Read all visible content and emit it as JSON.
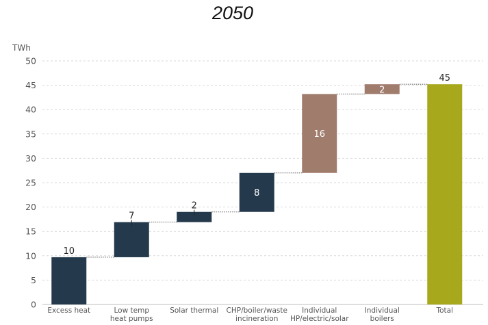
{
  "chart_data": {
    "type": "bar",
    "subtype": "waterfall",
    "title": "2050",
    "ylabel": "TWh",
    "xlabel": "",
    "ylim": [
      0,
      50
    ],
    "yticks": [
      0,
      5,
      10,
      15,
      20,
      25,
      30,
      35,
      40,
      45,
      50
    ],
    "grid": true,
    "categories": [
      [
        "Excess heat"
      ],
      [
        "Low temp",
        "heat pumps"
      ],
      [
        "Solar thermal"
      ],
      [
        "CHP/boiler/waste",
        "incineration"
      ],
      [
        "Individual",
        "HP/electric/solar"
      ],
      [
        "Individual",
        "boilers"
      ],
      [
        "Total"
      ]
    ],
    "values": [
      10,
      7,
      2,
      8,
      16,
      2,
      45
    ],
    "bars": [
      {
        "start": 0,
        "end": 9.7,
        "label": "10",
        "color": "#243a4c",
        "label_position": "above"
      },
      {
        "start": 9.7,
        "end": 16.9,
        "label": "7",
        "color": "#243a4c",
        "label_position": "above"
      },
      {
        "start": 16.9,
        "end": 19.0,
        "label": "2",
        "color": "#243a4c",
        "label_position": "above"
      },
      {
        "start": 19.0,
        "end": 27.0,
        "label": "8",
        "color": "#243a4c",
        "label_position": "inside"
      },
      {
        "start": 27.0,
        "end": 43.2,
        "label": "16",
        "color": "#a07c6c",
        "label_position": "inside"
      },
      {
        "start": 43.2,
        "end": 45.2,
        "label": "2",
        "color": "#a07c6c",
        "label_position": "inside"
      },
      {
        "start": 0,
        "end": 45.2,
        "label": "45",
        "color": "#a7a81c",
        "label_position": "above"
      }
    ],
    "colors": {
      "district": "#243a4c",
      "individual": "#a07c6c",
      "total": "#a7a81c"
    }
  }
}
